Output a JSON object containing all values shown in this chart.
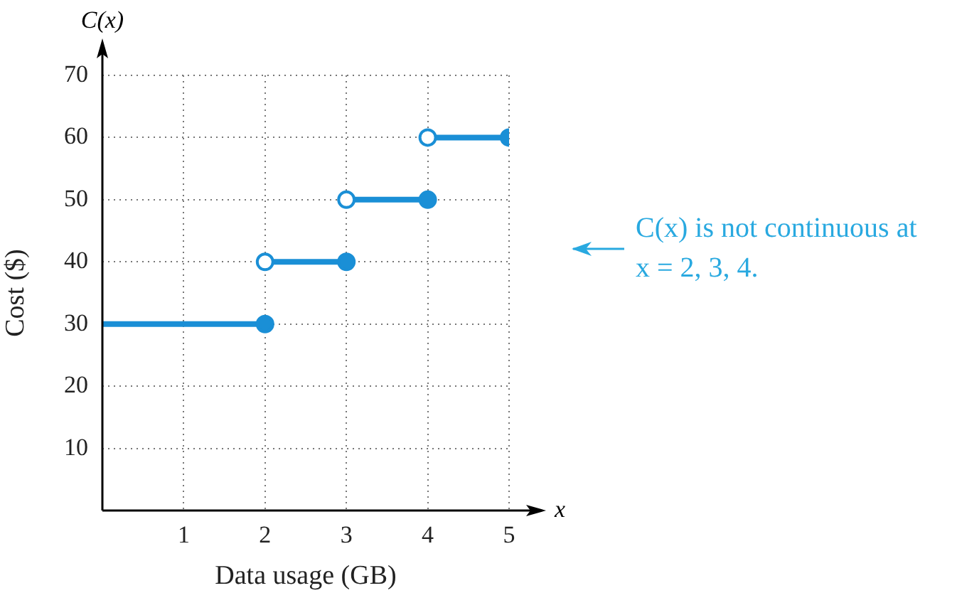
{
  "chart_data": {
    "type": "line",
    "xlabel": "Data usage (GB)",
    "ylabel": "Cost ($)",
    "annotations": [
      "C(x)",
      "x",
      "C(x) is not continuous at x = 2, 3, 4."
    ],
    "xlim": [
      0,
      5
    ],
    "xticks": [
      1,
      2,
      3,
      4,
      5
    ],
    "ylim": [
      0,
      70
    ],
    "yticks": [
      10,
      20,
      30,
      40,
      50,
      60,
      70
    ],
    "grid": true,
    "legend": false,
    "series": [
      {
        "type": "line",
        "x": [
          0,
          2
        ],
        "values": [
          30,
          30
        ],
        "color": "#1a8fd6",
        "marker": "none"
      },
      {
        "type": "line",
        "x": [
          2,
          3
        ],
        "values": [
          40,
          40
        ],
        "color": "#1a8fd6",
        "marker": "none"
      },
      {
        "type": "line",
        "x": [
          3,
          4
        ],
        "values": [
          50,
          50
        ],
        "color": "#1a8fd6",
        "marker": "none"
      },
      {
        "type": "line",
        "x": [
          4,
          5
        ],
        "values": [
          60,
          60
        ],
        "color": "#1a8fd6",
        "marker": "none"
      },
      {
        "type": "scatter",
        "x": [
          2,
          3,
          4,
          5
        ],
        "values": [
          30,
          40,
          50,
          60
        ],
        "color": "#1a8fd6",
        "marker": "circle"
      },
      {
        "type": "scatter",
        "x": [
          2,
          3,
          4
        ],
        "values": [
          40,
          50,
          60
        ],
        "color": "#ffffff",
        "marker": "circle"
      }
    ]
  }
}
